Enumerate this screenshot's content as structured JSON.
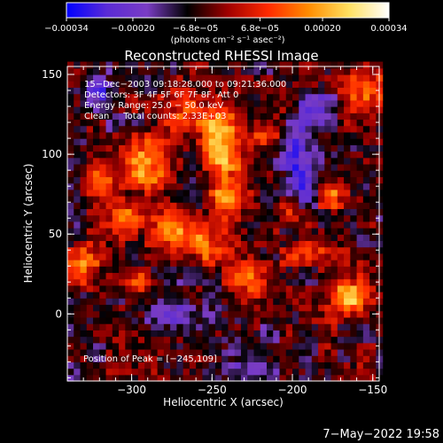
{
  "chart_data": {
    "type": "heatmap",
    "title": "Reconstructed RHESSI Image",
    "xlabel": "Heliocentric X (arcsec)",
    "ylabel": "Heliocentric Y (arcsec)",
    "xlim": [
      -340,
      -146
    ],
    "ylim": [
      -42,
      155
    ],
    "x_ticks": [
      -300,
      -250,
      -200,
      -150
    ],
    "x_tick_labels": [
      "−300",
      "−250",
      "−200",
      "−150"
    ],
    "y_ticks": [
      0,
      50,
      100,
      150
    ],
    "y_tick_labels": [
      "0",
      "50",
      "100",
      "150"
    ],
    "colorbar": {
      "range": [
        -0.00034,
        0.00034
      ],
      "ticks": [
        -0.00034,
        -0.0002,
        -6.8e-05,
        6.8e-05,
        0.0002,
        0.00034
      ],
      "tick_labels": [
        "−0.00034",
        "−0.00020",
        "−6.8e−05",
        "6.8e−05",
        "0.00020",
        "0.00034"
      ],
      "units": "(photons cm⁻² s⁻¹ asec⁻²)",
      "colors": [
        "#0000ff",
        "#5a2bd6",
        "#7a3cc4",
        "#000000",
        "#a00000",
        "#ff2a00",
        "#ff8c00",
        "#ffe060",
        "#ffffff"
      ]
    },
    "annotations": [
      "15−Dec−2003 09:18:28.000 to 09:21:36.000",
      "Detectors: 3F 4F 5F 6F 7F 8F, Att 0",
      "Energy Range: 25.0 − 50.0 keV",
      "Clean     Total counts: 2.33E+03"
    ],
    "peak_label": "Position of Peak = [−245,109]",
    "peak": [
      -245,
      109
    ],
    "sources": [
      {
        "x": -245,
        "y": 109,
        "amp": 1.0,
        "sx": 9,
        "sy": 14
      },
      {
        "x": -240,
        "y": 75,
        "amp": 0.75,
        "sx": 8,
        "sy": 10
      },
      {
        "x": -290,
        "y": 95,
        "amp": 0.7,
        "sx": 10,
        "sy": 12
      },
      {
        "x": -275,
        "y": 55,
        "amp": 0.6,
        "sx": 9,
        "sy": 8
      },
      {
        "x": -320,
        "y": 85,
        "amp": 0.55,
        "sx": 8,
        "sy": 10
      },
      {
        "x": -330,
        "y": 30,
        "amp": 0.55,
        "sx": 8,
        "sy": 9
      },
      {
        "x": -255,
        "y": 45,
        "amp": 0.65,
        "sx": 8,
        "sy": 8
      },
      {
        "x": -225,
        "y": 25,
        "amp": 0.6,
        "sx": 9,
        "sy": 8
      },
      {
        "x": -190,
        "y": 40,
        "amp": 0.5,
        "sx": 8,
        "sy": 7
      },
      {
        "x": -165,
        "y": 10,
        "amp": 0.75,
        "sx": 8,
        "sy": 9
      },
      {
        "x": -155,
        "y": 140,
        "amp": 0.65,
        "sx": 9,
        "sy": 10
      },
      {
        "x": -270,
        "y": 130,
        "amp": 0.45,
        "sx": 8,
        "sy": 8
      },
      {
        "x": -305,
        "y": 60,
        "amp": 0.55,
        "sx": 8,
        "sy": 8
      },
      {
        "x": -200,
        "y": 65,
        "amp": 0.45,
        "sx": 7,
        "sy": 7
      },
      {
        "x": -175,
        "y": 75,
        "amp": 0.5,
        "sx": 7,
        "sy": 8
      },
      {
        "x": -215,
        "y": 115,
        "amp": 0.45,
        "sx": 7,
        "sy": 8
      },
      {
        "x": -295,
        "y": 20,
        "amp": 0.45,
        "sx": 8,
        "sy": 7
      }
    ],
    "negatives": [
      {
        "x": -195,
        "y": 90,
        "amp": -0.7,
        "sx": 7,
        "sy": 18
      },
      {
        "x": -320,
        "y": 140,
        "amp": -0.5,
        "sx": 8,
        "sy": 8
      },
      {
        "x": -270,
        "y": 0,
        "amp": -0.35,
        "sx": 12,
        "sy": 10
      },
      {
        "x": -230,
        "y": -25,
        "amp": -0.3,
        "sx": 15,
        "sy": 8
      },
      {
        "x": -185,
        "y": 130,
        "amp": -0.35,
        "sx": 8,
        "sy": 8
      }
    ]
  },
  "timestamp": "7−May−2022 19:58"
}
